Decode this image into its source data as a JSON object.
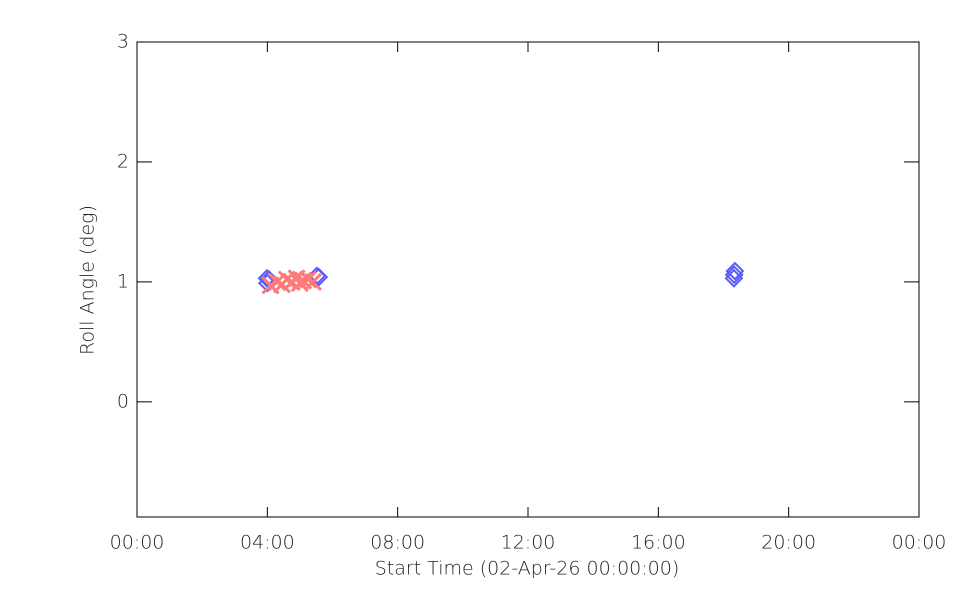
{
  "chart_data": {
    "type": "scatter",
    "x_label": "Start Time (02-Apr-26 00:00:00)",
    "y_label": "Roll Angle (deg)",
    "xlim": [
      0,
      24
    ],
    "xticks": [
      {
        "value": 0,
        "label": "00:00"
      },
      {
        "value": 4,
        "label": "04:00"
      },
      {
        "value": 8,
        "label": "08:00"
      },
      {
        "value": 12,
        "label": "12:00"
      },
      {
        "value": 16,
        "label": "16:00"
      },
      {
        "value": 20,
        "label": "20:00"
      },
      {
        "value": 24,
        "label": "00:00"
      }
    ],
    "ylim": [
      -0.96,
      3
    ],
    "yticks": [
      0,
      1,
      2,
      3
    ],
    "series": [
      {
        "color": "#5a5aff",
        "marker": "diamond",
        "x": [
          3.99,
          4.0,
          4.05,
          5.52,
          5.58,
          18.32,
          18.33,
          18.35
        ],
        "values": [
          1.03,
          0.99,
          1.02,
          1.05,
          1.04,
          1.03,
          1.06,
          1.09
        ]
      },
      {
        "color": "#ff7a7a",
        "marker": "cross",
        "x": [
          4.1,
          4.3,
          4.45,
          4.6,
          4.75,
          4.9,
          5.0,
          5.1,
          5.25,
          5.4
        ],
        "values": [
          0.97,
          1.0,
          0.98,
          1.02,
          1.0,
          1.03,
          0.99,
          1.01,
          1.02,
          1.0
        ]
      }
    ]
  }
}
